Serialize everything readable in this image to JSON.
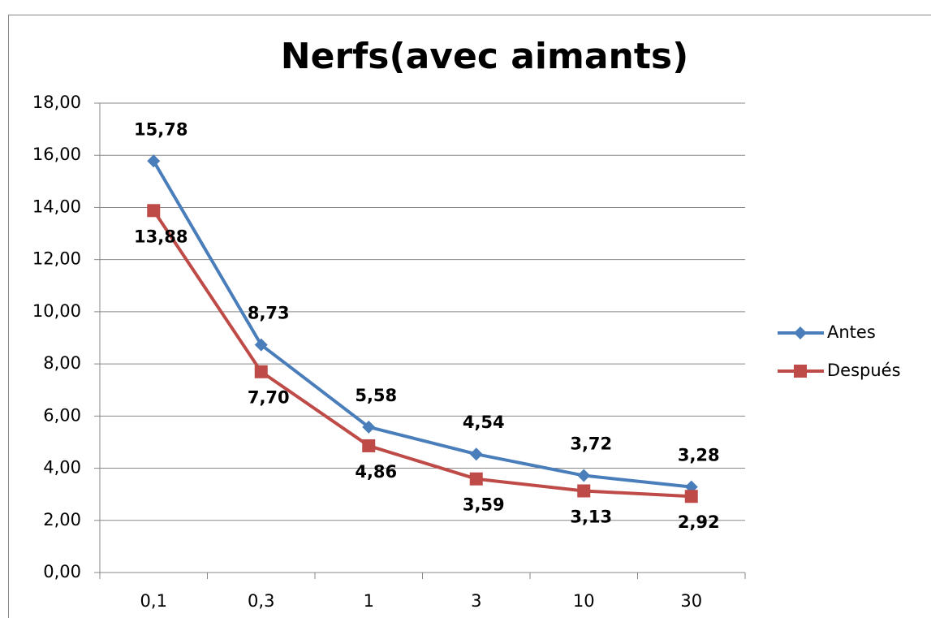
{
  "chart_data": {
    "type": "line",
    "title": "Nerfs(avec aimants)",
    "categories": [
      "0,1",
      "0,3",
      "1",
      "3",
      "10",
      "30"
    ],
    "series": [
      {
        "name": "Antes",
        "color": "#4a7ebb",
        "label_color": "#3b6698",
        "marker": "diamond",
        "label_position": "above",
        "values": [
          15.78,
          8.73,
          5.58,
          4.54,
          3.72,
          3.28
        ],
        "value_labels": [
          "15,78",
          "8,73",
          "5,58",
          "4,54",
          "3,72",
          "3,28"
        ]
      },
      {
        "name": "Después",
        "color": "#be4b48",
        "label_color": "#963835",
        "marker": "square",
        "label_position": "below",
        "values": [
          13.88,
          7.7,
          4.86,
          3.59,
          3.13,
          2.92
        ],
        "value_labels": [
          "13,88",
          "7,70",
          "4,86",
          "3,59",
          "3,13",
          "2,92"
        ]
      }
    ],
    "ylim": [
      0,
      18
    ],
    "yticks": [
      {
        "value": 0,
        "label": "0,00"
      },
      {
        "value": 2,
        "label": "2,00"
      },
      {
        "value": 4,
        "label": "4,00"
      },
      {
        "value": 6,
        "label": "6,00"
      },
      {
        "value": 8,
        "label": "8,00"
      },
      {
        "value": 10,
        "label": "10,00"
      },
      {
        "value": 12,
        "label": "12,00"
      },
      {
        "value": 14,
        "label": "14,00"
      },
      {
        "value": 16,
        "label": "16,00"
      },
      {
        "value": 18,
        "label": "18,00"
      }
    ],
    "grid": true,
    "legend": "right"
  }
}
